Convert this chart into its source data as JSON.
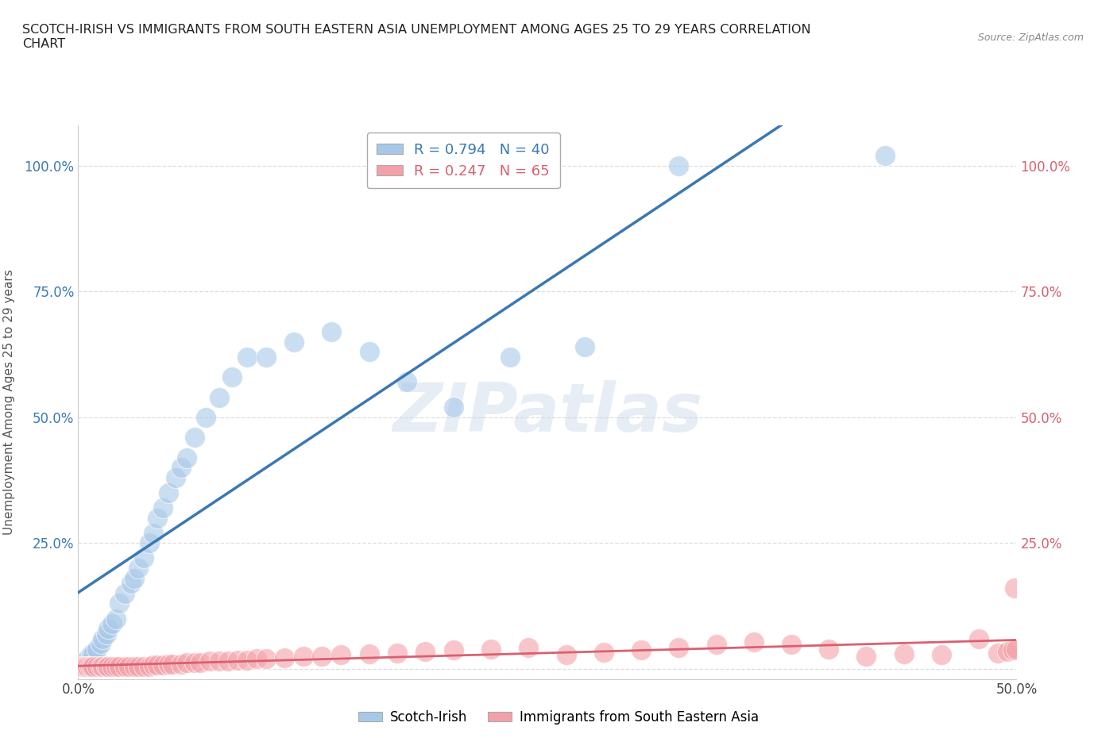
{
  "title_line1": "SCOTCH-IRISH VS IMMIGRANTS FROM SOUTH EASTERN ASIA UNEMPLOYMENT AMONG AGES 25 TO 29 YEARS CORRELATION",
  "title_line2": "CHART",
  "source_text": "Source: ZipAtlas.com",
  "ylabel": "Unemployment Among Ages 25 to 29 years",
  "x_min": 0.0,
  "x_max": 0.5,
  "y_min": -0.02,
  "y_max": 1.08,
  "background_color": "#ffffff",
  "watermark_text": "ZIPatlas",
  "blue_R": 0.794,
  "blue_N": 40,
  "pink_R": 0.247,
  "pink_N": 65,
  "blue_color": "#a8c8e8",
  "pink_color": "#f4a0a8",
  "blue_line_color": "#3a78b5",
  "pink_line_color": "#d96070",
  "grid_color": "#dddddd",
  "scotch_irish_x": [
    0.001,
    0.005,
    0.007,
    0.008,
    0.01,
    0.012,
    0.013,
    0.015,
    0.016,
    0.018,
    0.02,
    0.022,
    0.025,
    0.028,
    0.03,
    0.032,
    0.035,
    0.038,
    0.04,
    0.042,
    0.045,
    0.048,
    0.052,
    0.055,
    0.058,
    0.062,
    0.068,
    0.075,
    0.082,
    0.09,
    0.1,
    0.115,
    0.135,
    0.155,
    0.175,
    0.2,
    0.23,
    0.27,
    0.32,
    0.43
  ],
  "scotch_irish_y": [
    0.01,
    0.02,
    0.03,
    0.03,
    0.04,
    0.05,
    0.06,
    0.07,
    0.08,
    0.09,
    0.1,
    0.13,
    0.15,
    0.17,
    0.18,
    0.2,
    0.22,
    0.25,
    0.27,
    0.3,
    0.32,
    0.35,
    0.38,
    0.4,
    0.42,
    0.46,
    0.5,
    0.54,
    0.58,
    0.62,
    0.62,
    0.65,
    0.67,
    0.63,
    0.57,
    0.52,
    0.62,
    0.64,
    1.0,
    1.02
  ],
  "sea_immigrants_x": [
    0.001,
    0.002,
    0.003,
    0.004,
    0.005,
    0.006,
    0.007,
    0.008,
    0.01,
    0.012,
    0.013,
    0.015,
    0.016,
    0.018,
    0.02,
    0.022,
    0.025,
    0.027,
    0.03,
    0.032,
    0.035,
    0.038,
    0.04,
    0.042,
    0.045,
    0.048,
    0.05,
    0.055,
    0.058,
    0.062,
    0.065,
    0.07,
    0.075,
    0.08,
    0.085,
    0.09,
    0.095,
    0.1,
    0.11,
    0.12,
    0.13,
    0.14,
    0.155,
    0.17,
    0.185,
    0.2,
    0.22,
    0.24,
    0.26,
    0.28,
    0.3,
    0.32,
    0.34,
    0.36,
    0.38,
    0.4,
    0.42,
    0.44,
    0.46,
    0.48,
    0.49,
    0.495,
    0.498,
    0.499,
    0.5
  ],
  "sea_immigrants_y": [
    0.005,
    0.005,
    0.005,
    0.005,
    0.005,
    0.005,
    0.005,
    0.005,
    0.005,
    0.005,
    0.005,
    0.005,
    0.005,
    0.005,
    0.005,
    0.005,
    0.005,
    0.005,
    0.005,
    0.005,
    0.005,
    0.005,
    0.008,
    0.008,
    0.008,
    0.01,
    0.01,
    0.01,
    0.012,
    0.012,
    0.012,
    0.015,
    0.015,
    0.015,
    0.018,
    0.018,
    0.02,
    0.02,
    0.022,
    0.025,
    0.025,
    0.028,
    0.03,
    0.032,
    0.035,
    0.038,
    0.04,
    0.042,
    0.028,
    0.033,
    0.038,
    0.043,
    0.048,
    0.053,
    0.048,
    0.04,
    0.025,
    0.03,
    0.028,
    0.06,
    0.032,
    0.035,
    0.038,
    0.16,
    0.04
  ]
}
